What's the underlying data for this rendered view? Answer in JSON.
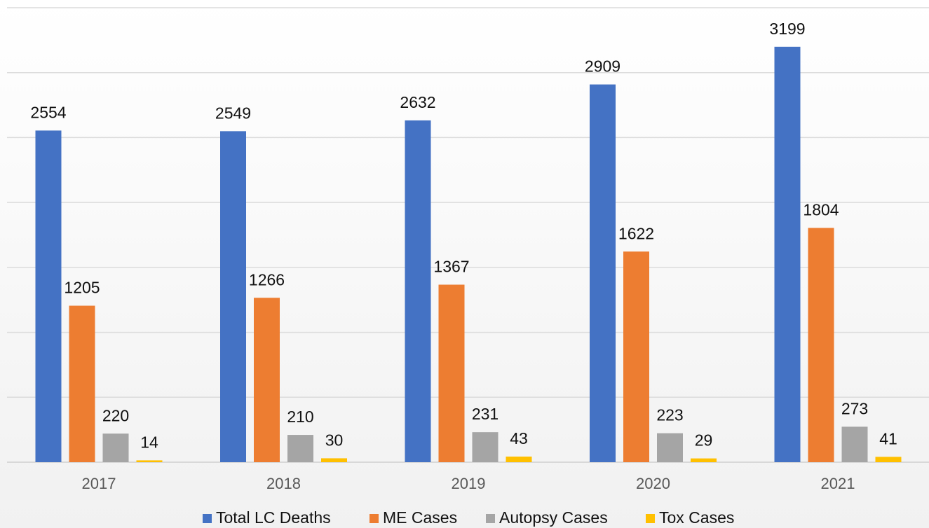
{
  "chart_data": {
    "type": "bar",
    "categories": [
      "2017",
      "2018",
      "2019",
      "2020",
      "2021"
    ],
    "series": [
      {
        "name": "Total LC Deaths",
        "color": "#4472c4",
        "values": [
          2554,
          2549,
          2632,
          2909,
          3199
        ]
      },
      {
        "name": "ME Cases",
        "color": "#ed7d31",
        "values": [
          1205,
          1266,
          1367,
          1622,
          1804
        ]
      },
      {
        "name": "Autopsy Cases",
        "color": "#a5a5a5",
        "values": [
          220,
          210,
          231,
          223,
          273
        ]
      },
      {
        "name": "Tox Cases",
        "color": "#ffc000",
        "values": [
          14,
          30,
          43,
          29,
          41
        ]
      }
    ],
    "ylim": [
      0,
      3500
    ],
    "yticks": [
      0,
      500,
      1000,
      1500,
      2000,
      2500,
      3000,
      3500
    ],
    "grid": true,
    "legend": "bottom"
  }
}
